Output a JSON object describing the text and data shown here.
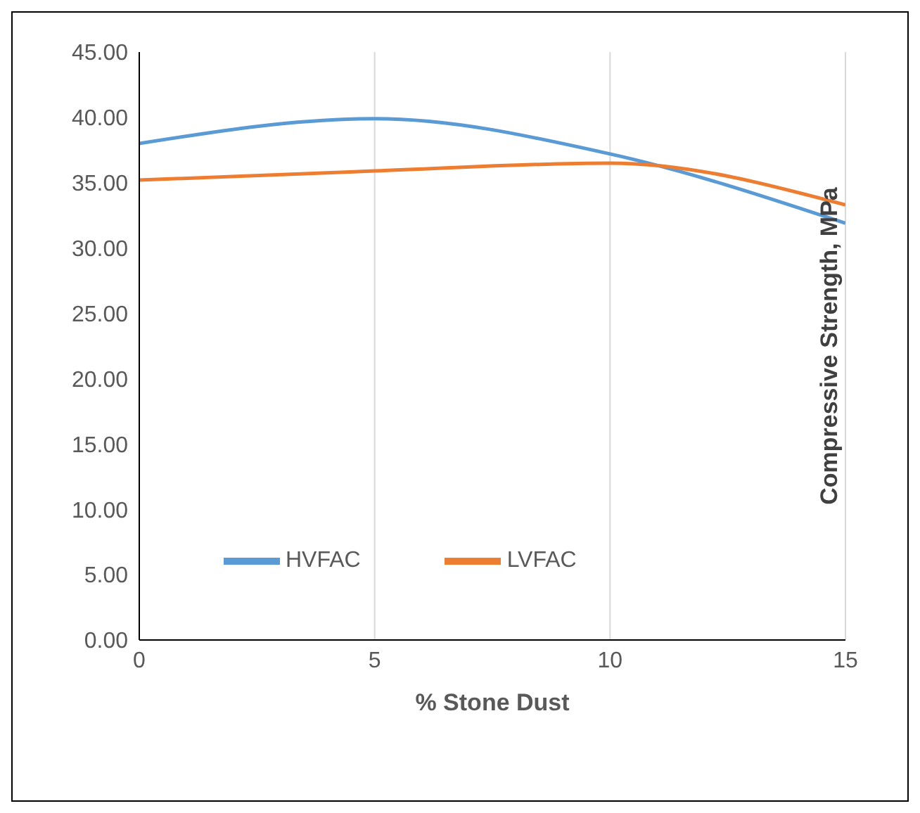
{
  "chart_data": {
    "type": "line",
    "xlabel": "% Stone Dust",
    "ylabel": "Compressive Strength, MPa",
    "x": [
      0,
      5,
      10,
      15
    ],
    "series": [
      {
        "name": "HVFAC",
        "color": "#5b9bd5",
        "values": [
          38.0,
          39.9,
          37.2,
          31.9
        ]
      },
      {
        "name": "LVFAC",
        "color": "#ed7d31",
        "values": [
          35.2,
          35.9,
          36.5,
          33.3
        ]
      }
    ],
    "xlim": [
      0,
      15
    ],
    "xticks": [
      0,
      5,
      10,
      15
    ],
    "ylim": [
      0,
      45
    ],
    "yticks": [
      {
        "value": 0,
        "label": "0.00"
      },
      {
        "value": 5,
        "label": "5.00"
      },
      {
        "value": 10,
        "label": "10.00"
      },
      {
        "value": 15,
        "label": "15.00"
      },
      {
        "value": 20,
        "label": "20.00"
      },
      {
        "value": 25,
        "label": "25.00"
      },
      {
        "value": 30,
        "label": "30.00"
      },
      {
        "value": 35,
        "label": "35.00"
      },
      {
        "value": 40,
        "label": "40.00"
      },
      {
        "value": 45,
        "label": "45.00"
      }
    ],
    "grid": "x",
    "legend": "bottom",
    "marker": "none",
    "line_style": "solid"
  }
}
